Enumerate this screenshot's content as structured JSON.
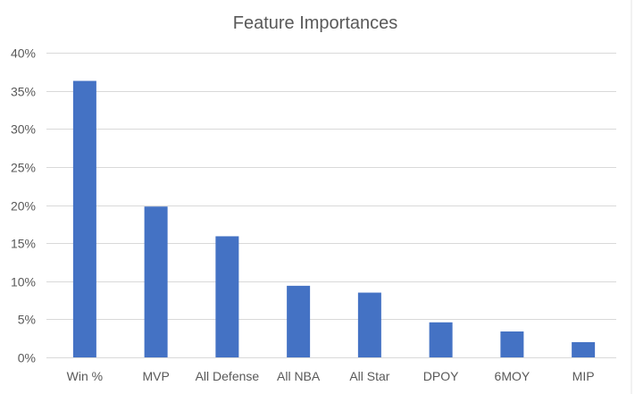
{
  "chart_data": {
    "type": "bar",
    "title": "Feature Importances",
    "xlabel": "",
    "ylabel": "",
    "categories": [
      "Win %",
      "MVP",
      "All Defense",
      "All NBA",
      "All Star",
      "DPOY",
      "6MOY",
      "MIP"
    ],
    "values": [
      36.3,
      19.8,
      15.9,
      9.4,
      8.5,
      4.6,
      3.4,
      2.0
    ],
    "ylim": [
      0,
      40
    ],
    "yticks": [
      0,
      5,
      10,
      15,
      20,
      25,
      30,
      35,
      40
    ],
    "ytick_labels": [
      "0%",
      "5%",
      "10%",
      "15%",
      "20%",
      "25%",
      "30%",
      "35%",
      "40%"
    ],
    "grid": true,
    "legend": "none",
    "colors": {
      "bar": "#4472c4",
      "grid": "#d9d9d9",
      "text": "#595959",
      "background": "#ffffff"
    }
  }
}
